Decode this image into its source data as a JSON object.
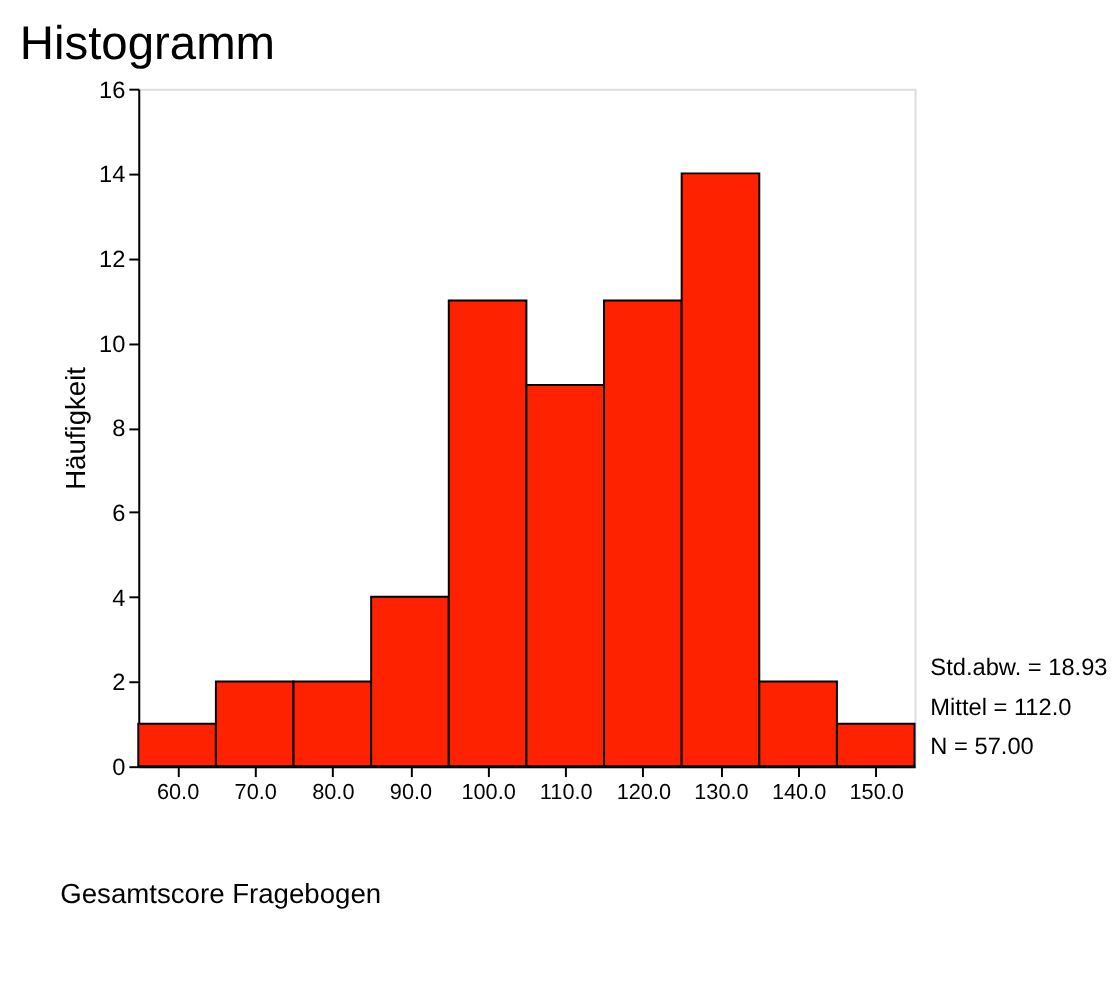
{
  "chart_data": {
    "type": "histogram",
    "title": "Histogramm",
    "xlabel": "Gesamtscore Fragebogen",
    "ylabel": "Häufigkeit",
    "bins": [
      55,
      65,
      75,
      85,
      95,
      105,
      115,
      125,
      135,
      145,
      155
    ],
    "values": [
      1,
      2,
      2,
      4,
      11,
      9,
      11,
      14,
      2,
      1
    ],
    "color": "#ff2200",
    "xlim": [
      55,
      155
    ],
    "xticks": [
      {
        "value": 60,
        "label": "60.0"
      },
      {
        "value": 70,
        "label": "70.0"
      },
      {
        "value": 80,
        "label": "80.0"
      },
      {
        "value": 90,
        "label": "90.0"
      },
      {
        "value": 100,
        "label": "100.0"
      },
      {
        "value": 110,
        "label": "110.0"
      },
      {
        "value": 120,
        "label": "120.0"
      },
      {
        "value": 130,
        "label": "130.0"
      },
      {
        "value": 140,
        "label": "140.0"
      },
      {
        "value": 150,
        "label": "150.0"
      }
    ],
    "ylim": [
      0,
      16
    ],
    "yticks": [
      0,
      2,
      4,
      6,
      8,
      10,
      12,
      14,
      16
    ],
    "grid": false,
    "annotations": [
      "Std.abw. = 18.93",
      "Mittel = 112.0",
      "N = 57.00"
    ]
  }
}
